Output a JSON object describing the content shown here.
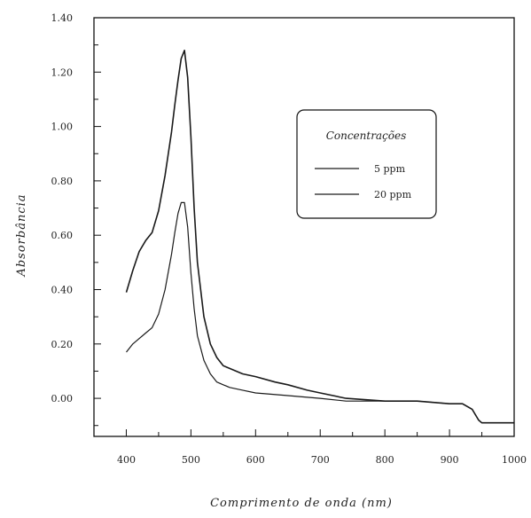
{
  "chart_data": {
    "type": "line",
    "xlabel": "Comprimento de onda (nm)",
    "ylabel": "Absorbância",
    "xlim": [
      350,
      1000
    ],
    "ylim": [
      -0.14,
      1.4
    ],
    "x_ticks": [
      400,
      500,
      600,
      700,
      800,
      900,
      1000
    ],
    "y_ticks": [
      "0.00",
      "0.20",
      "0.40",
      "0.60",
      "0.80",
      "1.00",
      "1.20",
      "1.40"
    ],
    "y_tick_values": [
      0.0,
      0.2,
      0.4,
      0.6,
      0.8,
      1.0,
      1.2,
      1.4
    ],
    "grid": false,
    "legend": {
      "title": "Concentrações",
      "placement": "upper-right"
    },
    "series": [
      {
        "name": "5 ppm",
        "color": "#1a1a1a",
        "x": [
          400,
          410,
          420,
          430,
          440,
          450,
          460,
          470,
          475,
          480,
          485,
          490,
          495,
          500,
          505,
          510,
          520,
          530,
          540,
          550,
          560,
          580,
          600,
          650,
          700,
          740,
          800,
          850,
          900,
          920,
          935,
          945,
          950,
          960,
          980,
          1000
        ],
        "y": [
          0.17,
          0.2,
          0.22,
          0.24,
          0.26,
          0.31,
          0.4,
          0.53,
          0.61,
          0.68,
          0.72,
          0.72,
          0.63,
          0.46,
          0.33,
          0.23,
          0.14,
          0.09,
          0.06,
          0.05,
          0.04,
          0.03,
          0.02,
          0.01,
          0.0,
          -0.01,
          -0.01,
          -0.01,
          -0.02,
          -0.02,
          -0.04,
          -0.08,
          -0.09,
          -0.09,
          -0.09,
          -0.09
        ]
      },
      {
        "name": "20 ppm",
        "color": "#1a1a1a",
        "x": [
          400,
          410,
          420,
          430,
          440,
          450,
          460,
          470,
          475,
          480,
          485,
          490,
          495,
          500,
          505,
          510,
          520,
          530,
          540,
          550,
          560,
          580,
          600,
          630,
          650,
          680,
          700,
          740,
          800,
          850,
          900,
          920,
          935,
          945,
          950,
          960,
          980,
          1000
        ],
        "y": [
          0.39,
          0.47,
          0.54,
          0.58,
          0.61,
          0.69,
          0.82,
          0.98,
          1.08,
          1.17,
          1.25,
          1.28,
          1.18,
          0.96,
          0.7,
          0.5,
          0.3,
          0.2,
          0.15,
          0.12,
          0.11,
          0.09,
          0.08,
          0.06,
          0.05,
          0.03,
          0.02,
          0.0,
          -0.01,
          -0.01,
          -0.02,
          -0.02,
          -0.04,
          -0.08,
          -0.09,
          -0.09,
          -0.09,
          -0.09
        ]
      }
    ]
  }
}
